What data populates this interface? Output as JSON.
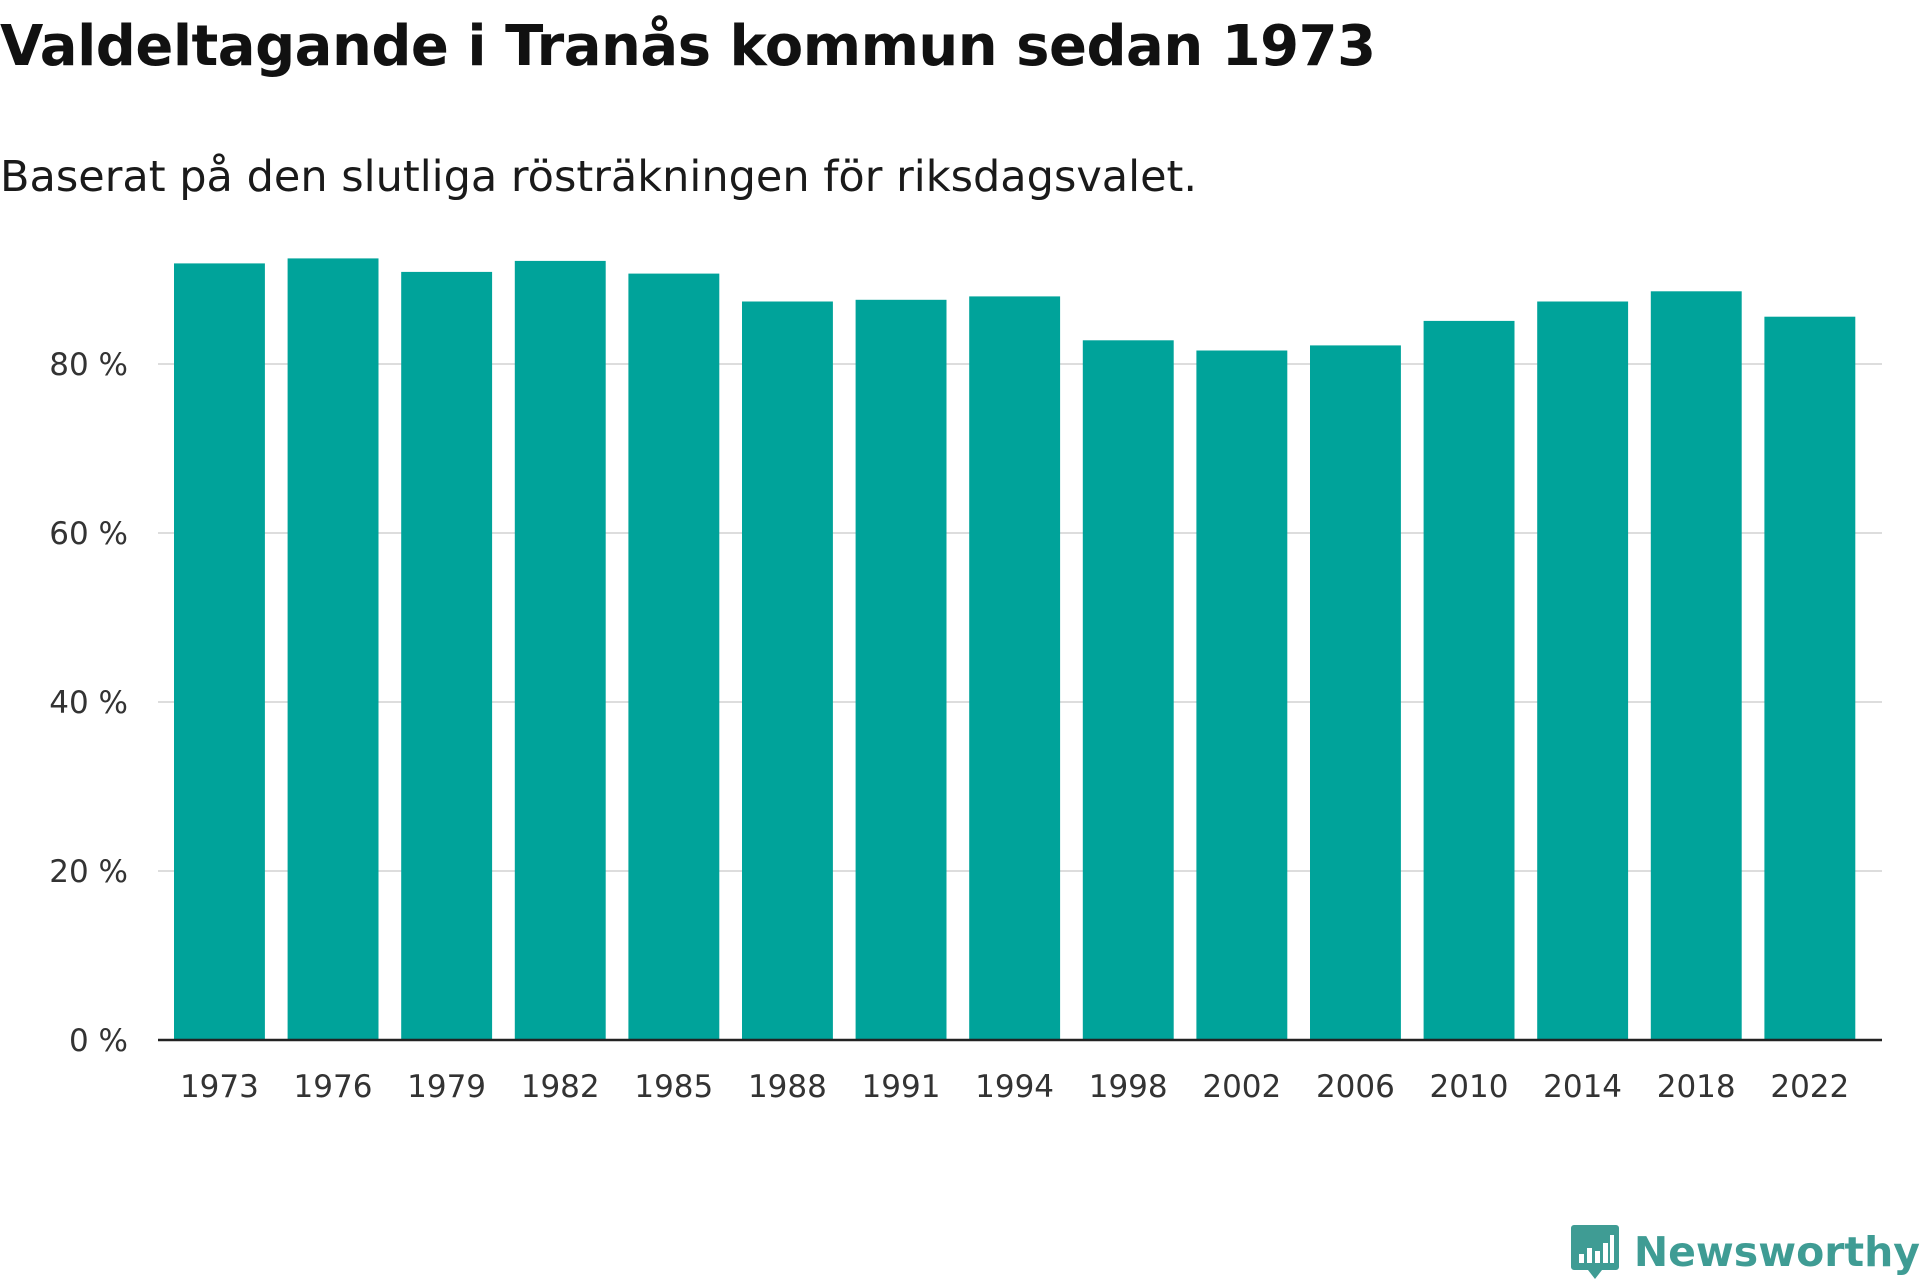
{
  "header": {
    "title": "Valdeltagande i Tranås kommun sedan 1973",
    "subtitle": "Baserat på den slutliga rösträkningen för riksdagsvalet."
  },
  "branding": {
    "logo_text": "Newsworthy",
    "logo_color": "#3f9c94"
  },
  "chart_data": {
    "type": "bar",
    "title": "Valdeltagande i Tranås kommun sedan 1973",
    "subtitle": "Baserat på den slutliga rösträkningen för riksdagsvalet.",
    "xlabel": "",
    "ylabel": "",
    "categories": [
      "1973",
      "1976",
      "1979",
      "1982",
      "1985",
      "1988",
      "1991",
      "1994",
      "1998",
      "2002",
      "2006",
      "2010",
      "2014",
      "2018",
      "2022"
    ],
    "values": [
      91.9,
      92.5,
      90.9,
      92.2,
      90.7,
      87.4,
      87.6,
      88.0,
      82.8,
      81.6,
      82.2,
      85.1,
      87.4,
      88.6,
      85.6
    ],
    "ylim": [
      0,
      100
    ],
    "yticks": [
      0,
      20,
      40,
      60,
      80
    ],
    "ytick_labels": [
      "0 %",
      "20 %",
      "40 %",
      "60 %",
      "80 %"
    ],
    "unit": "%",
    "grid": true,
    "legend": "none",
    "bar_color": "#00a39a",
    "grid_color": "#dddddd",
    "axis_color": "#222222"
  }
}
